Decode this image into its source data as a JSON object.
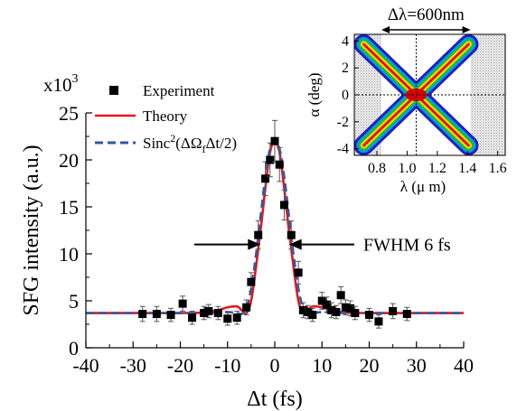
{
  "chart_data": [
    {
      "type": "scatter",
      "xlabel": "Δt (fs)",
      "ylabel": "SFG intensity (a.u.)",
      "y_multiplier": "x10",
      "y_multiplier_exp": "3",
      "xlim": [
        -40,
        40
      ],
      "ylim": [
        0,
        25
      ],
      "xticks": [
        "-40",
        "-30",
        "-20",
        "-10",
        "0",
        "10",
        "20",
        "30",
        "40"
      ],
      "yticks": [
        "0",
        "5",
        "10",
        "15",
        "20",
        "25"
      ],
      "grid": false,
      "legend_position": "top-left",
      "series": [
        {
          "name": "Experiment",
          "kind": "points",
          "color": "#000000",
          "x": [
            -28,
            -25,
            -22,
            -19.5,
            -17.5,
            -15,
            -14,
            -12,
            -10,
            -8,
            -6,
            -5,
            -3.5,
            -2,
            -1,
            0,
            1,
            2,
            3.5,
            5,
            6,
            7,
            8,
            10,
            11,
            12,
            13,
            14,
            15,
            16,
            17,
            20,
            22,
            25,
            28
          ],
          "y": [
            3.6,
            3.6,
            3.5,
            4.7,
            3.2,
            3.7,
            3.9,
            3.7,
            3.1,
            3.2,
            4.3,
            7.0,
            12.0,
            18.0,
            20.0,
            22.0,
            19.5,
            15.2,
            12.0,
            8.0,
            4.0,
            3.8,
            3.5,
            5.0,
            4.6,
            4.0,
            3.8,
            5.6,
            4.3,
            4.2,
            3.7,
            3.5,
            2.8,
            3.9,
            3.6
          ],
          "yerr": [
            0.8,
            0.8,
            0.7,
            0.8,
            0.7,
            0.7,
            0.7,
            0.7,
            0.7,
            0.7,
            0.8,
            1.0,
            1.5,
            1.8,
            1.8,
            2.2,
            1.8,
            1.6,
            1.5,
            1.2,
            0.8,
            0.7,
            0.7,
            0.9,
            0.8,
            0.8,
            0.7,
            0.9,
            0.8,
            0.8,
            0.7,
            0.7,
            0.7,
            0.8,
            0.7
          ]
        },
        {
          "name": "Theory",
          "kind": "line",
          "color": "#e8141c",
          "x": [
            -40,
            -20,
            -15,
            -12,
            -10,
            -8,
            -7,
            -6,
            -5,
            -4,
            -3,
            -2,
            -1,
            0,
            1,
            2,
            3,
            4,
            5,
            6,
            7,
            8,
            10,
            12,
            15,
            20,
            40
          ],
          "y": [
            3.7,
            3.7,
            3.75,
            4.0,
            4.3,
            4.4,
            4.0,
            3.7,
            5.0,
            8.5,
            12.5,
            17.0,
            20.8,
            22.0,
            20.8,
            17.0,
            12.5,
            8.5,
            5.0,
            3.7,
            4.0,
            4.4,
            4.3,
            4.0,
            3.75,
            3.7,
            3.7
          ]
        },
        {
          "name_prefix": "Sinc",
          "name_sup": "2",
          "name_main": "(ΔΩ",
          "name_sub": "f",
          "name_end": "Δt/2)",
          "kind": "dashed",
          "color": "#2f5aa8",
          "x": [
            -40,
            -20,
            -15,
            -12,
            -10,
            -8,
            -7,
            -6,
            -5,
            -4,
            -3,
            -2,
            -1,
            0,
            1,
            2,
            3,
            4,
            5,
            6,
            7,
            8,
            10,
            12,
            15,
            20,
            40
          ],
          "y": [
            3.7,
            3.7,
            3.7,
            3.75,
            3.8,
            3.7,
            3.6,
            4.2,
            6.3,
            9.8,
            14.0,
            18.2,
            21.2,
            22.0,
            21.2,
            18.2,
            14.0,
            9.8,
            6.3,
            4.2,
            3.6,
            3.7,
            3.8,
            3.75,
            3.7,
            3.7,
            3.7
          ]
        }
      ],
      "annotation": {
        "text": "FWHM 6 fs",
        "arrow_left_x": -3,
        "arrow_right_x": 3,
        "y": 11
      }
    },
    {
      "type": "heatmap",
      "xlabel": "λ (μ m)",
      "ylabel": "α (deg)",
      "xlim": [
        0.65,
        1.65
      ],
      "ylim": [
        -4.5,
        4.5
      ],
      "xticks": [
        "0.8",
        "1.0",
        "1.2",
        "1.4",
        "1.6"
      ],
      "yticks": [
        "-4",
        "-2",
        "0",
        "2",
        "4"
      ],
      "shaded_below_x": 0.83,
      "shaded_above_x": 1.42,
      "center_x": 1.06,
      "center_y": 0,
      "bandwidth_label": "Δλ=600nm",
      "colors": [
        "#d40000",
        "#ff8a00",
        "#f2e800",
        "#20c020",
        "#00a0e0",
        "#2020c0"
      ]
    }
  ]
}
